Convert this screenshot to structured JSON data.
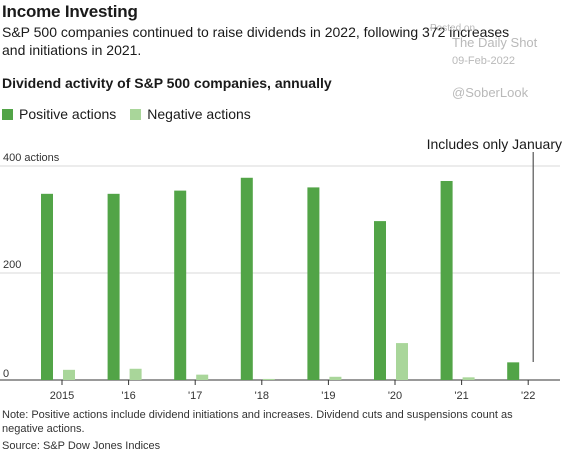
{
  "header": {
    "title": "Income Investing",
    "dek": "S&P 500 companies continued to raise dividends in 2022, following 372 increases and initiations in 2021.",
    "subtitle": "Dividend activity of S&P 500 companies, annually"
  },
  "watermark": {
    "posted": "Posted on",
    "site": "The Daily Shot",
    "date": "09-Feb-2022",
    "handle": "@SoberLook"
  },
  "colors": {
    "positive": "#52a447",
    "negative": "#a9d69a",
    "grid": "#d9d9d9",
    "annotation_line": "#555555"
  },
  "chart_data": {
    "type": "bar",
    "categories": [
      "2015",
      "'16",
      "'17",
      "'18",
      "'19",
      "'20",
      "'21",
      "'22"
    ],
    "series": [
      {
        "name": "Positive actions",
        "values": [
          348,
          348,
          354,
          378,
          360,
          297,
          372,
          33
        ]
      },
      {
        "name": "Negative actions",
        "values": [
          19,
          21,
          10,
          2,
          6,
          69,
          5,
          0
        ]
      }
    ],
    "y_ticks": [
      {
        "value": 400,
        "label": "400 actions"
      },
      {
        "value": 200,
        "label": "200"
      },
      {
        "value": 0,
        "label": "0"
      }
    ],
    "ylim": [
      0,
      400
    ],
    "grid": true,
    "legend_position": "top-left",
    "annotation": {
      "text": "Includes only January",
      "category_index": 7
    }
  },
  "footer": {
    "note": "Note: Positive actions include dividend initiations and increases. Dividend cuts and suspensions count as negative actions.",
    "source": "Source: S&P Dow Jones Indices"
  }
}
